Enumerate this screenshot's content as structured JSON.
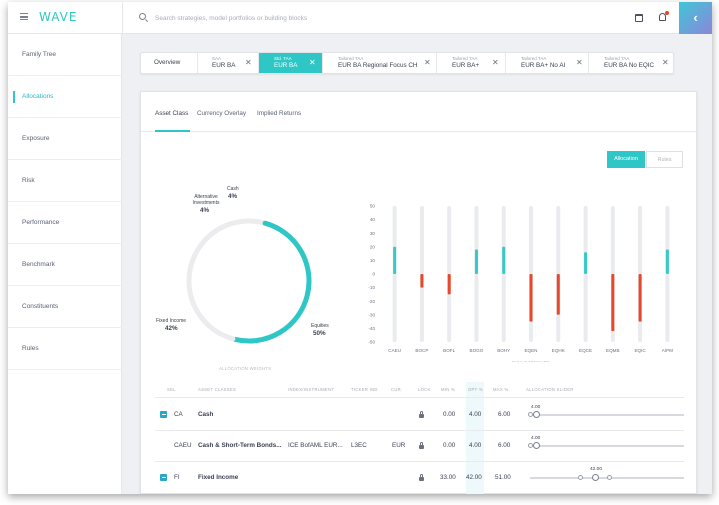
{
  "app": {
    "logo": "WAVE"
  },
  "search": {
    "placeholder": "Search strategies, model portfolios or building blocks"
  },
  "sidebar": {
    "items": [
      {
        "label": "Family Tree",
        "active": false
      },
      {
        "label": "Allocations",
        "active": true
      },
      {
        "label": "Exposure",
        "active": false
      },
      {
        "label": "Risk",
        "active": false
      },
      {
        "label": "Performance",
        "active": false
      },
      {
        "label": "Benchmark",
        "active": false
      },
      {
        "label": "Constituents",
        "active": false
      },
      {
        "label": "Rules",
        "active": false
      }
    ]
  },
  "portfolio_tabs": [
    {
      "sub": "",
      "name": "Overview",
      "closable": false,
      "active": false
    },
    {
      "sub": "SAA",
      "name": "EUR BA",
      "closable": true,
      "active": false
    },
    {
      "sub": "Std. TAA",
      "name": "EUR BA",
      "closable": true,
      "active": true
    },
    {
      "sub": "Tailored TAA",
      "name": "EUR BA Regional Focus CH",
      "closable": true,
      "active": false
    },
    {
      "sub": "Tailored TAA",
      "name": "EUR BA+",
      "closable": true,
      "active": false
    },
    {
      "sub": "Tailored TAA",
      "name": "EUR BA+ No AI",
      "closable": true,
      "active": false
    },
    {
      "sub": "Tailored TAA",
      "name": "EUR BA No EQIC",
      "closable": true,
      "active": false
    }
  ],
  "card_tabs": [
    "Asset Class",
    "Currency Overlay",
    "Implied Returns"
  ],
  "toggle": {
    "on": "Allocation",
    "off": "Rules"
  },
  "donut": {
    "caption": "ALLOCATION WEIGHTS",
    "segments": [
      {
        "label": "Cash",
        "value": 4,
        "pct": "4%",
        "color": "#ececef"
      },
      {
        "label": "Equities",
        "value": 50,
        "pct": "50%",
        "color": "#2ec7c5"
      },
      {
        "label": "Fixed Income",
        "value": 42,
        "pct": "42%",
        "color": "#ececef"
      },
      {
        "label": "Alternative Investments",
        "value": 4,
        "pct": "4%",
        "color": "#ececef"
      }
    ],
    "labels": {
      "cash": "Cash",
      "cash_pct": "4%",
      "alt_1": "Alternative",
      "alt_2": "Investments",
      "alt_pct": "4%",
      "fi": "Fixed Income",
      "fi_pct": "42%",
      "eq": "Equities",
      "eq_pct": "50%"
    }
  },
  "chart_data": {
    "type": "bar",
    "title": "",
    "xlabel": "RISK EXPOSURE",
    "ylabel": "",
    "ylim": [
      -50,
      50
    ],
    "yticks": [
      50,
      40,
      30,
      20,
      10,
      0,
      -10,
      -20,
      -30,
      -40,
      -50
    ],
    "categories": [
      "CAEU",
      "BOCP",
      "BOFL",
      "BOGO",
      "BOHY",
      "EQEN",
      "EQHK",
      "EQCE",
      "EQMB",
      "EQIC",
      "AIPM"
    ],
    "values": [
      20,
      -10,
      -15,
      18,
      20,
      -35,
      -30,
      16,
      -42,
      -35,
      18
    ],
    "colors": {
      "positive": "#36c9c6",
      "negative": "#e8472b",
      "track": "#e9ebee"
    },
    "grid": false
  },
  "table": {
    "headers": {
      "sel": "SEL",
      "asset": "ASSET CLASSES",
      "index": "INDEX/INSTRUMENT",
      "ticker": "TICKER IND",
      "cur": "CUR.",
      "lock": "LOCK",
      "min": "MIN %",
      "opt": "OPT %",
      "max": "MAX %",
      "slider": "ALLOCATION SLIDER"
    },
    "rows": [
      {
        "code": "CA",
        "name": "Cash",
        "index": "",
        "ticker": "",
        "cur": "",
        "min": "0.00",
        "opt": "4.00",
        "max": "6.00",
        "slider": "4.00",
        "checked": true,
        "bold_code": false
      },
      {
        "code": "CAEU",
        "name": "Cash & Short-Term Bonds...",
        "index": "ICE BofAML EUR...",
        "ticker": "L3EC",
        "cur": "EUR",
        "min": "0.00",
        "opt": "4.00",
        "max": "6.00",
        "slider": "4.00",
        "checked": false
      },
      {
        "code": "FI",
        "name": "Fixed Income",
        "index": "",
        "ticker": "",
        "cur": "",
        "min": "33.00",
        "opt": "42.00",
        "max": "51.00",
        "slider": "42.00",
        "checked": true
      }
    ]
  }
}
